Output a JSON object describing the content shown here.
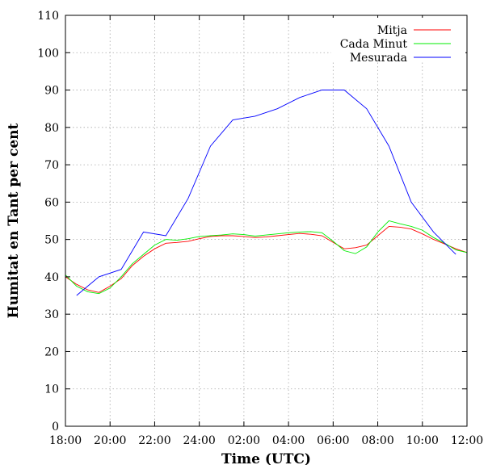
{
  "chart_data": {
    "type": "line",
    "title": "",
    "xlabel": "Time (UTC)",
    "ylabel": "Humitat en Tant per cent",
    "xlim": [
      18,
      36
    ],
    "ylim": [
      0,
      110
    ],
    "x_ticks": [
      {
        "value": 18,
        "label": "18:00"
      },
      {
        "value": 20,
        "label": "20:00"
      },
      {
        "value": 22,
        "label": "22:00"
      },
      {
        "value": 24,
        "label": "24:00"
      },
      {
        "value": 26,
        "label": "02:00"
      },
      {
        "value": 28,
        "label": "04:00"
      },
      {
        "value": 30,
        "label": "06:00"
      },
      {
        "value": 32,
        "label": "08:00"
      },
      {
        "value": 34,
        "label": "10:00"
      },
      {
        "value": 36,
        "label": "12:00"
      }
    ],
    "y_ticks": [
      0,
      10,
      20,
      30,
      40,
      50,
      60,
      70,
      80,
      90,
      100,
      110
    ],
    "grid": true,
    "legend_position": "top-right",
    "series": [
      {
        "name": "Mitja",
        "color": "#ff0000",
        "x": [
          18,
          18.5,
          19,
          19.5,
          20,
          20.5,
          21,
          21.5,
          22,
          22.5,
          23,
          23.5,
          24,
          24.5,
          25,
          25.5,
          26,
          26.5,
          27,
          27.5,
          28,
          28.5,
          29,
          29.5,
          30,
          30.5,
          31,
          31.5,
          32,
          32.5,
          33,
          33.5,
          34,
          34.5,
          35,
          35.5,
          36
        ],
        "values": [
          40,
          38,
          36.5,
          35.8,
          37.5,
          39.5,
          43,
          45.5,
          47.5,
          49,
          49.2,
          49.5,
          50.2,
          50.8,
          51,
          51,
          50.8,
          50.5,
          50.7,
          51,
          51.3,
          51.6,
          51.4,
          51,
          49.2,
          47.5,
          47.8,
          48.5,
          51,
          53.5,
          53.3,
          52.8,
          51.5,
          50,
          48.8,
          47.5,
          46.5
        ]
      },
      {
        "name": "Cada Minut",
        "color": "#00ee00",
        "x": [
          18,
          18.5,
          19,
          19.5,
          20,
          20.5,
          21,
          21.5,
          22,
          22.5,
          23,
          23.5,
          24,
          24.5,
          25,
          25.5,
          26,
          26.5,
          27,
          27.5,
          28,
          28.5,
          29,
          29.5,
          30,
          30.5,
          31,
          31.5,
          32,
          32.5,
          33,
          33.5,
          34,
          34.5,
          35,
          35.5,
          36
        ],
        "values": [
          40.5,
          37.5,
          36,
          35.5,
          37,
          40,
          43.5,
          46,
          48.5,
          50,
          49.8,
          50.2,
          50.8,
          51,
          51.2,
          51.5,
          51.3,
          50.9,
          51.2,
          51.5,
          51.8,
          52,
          52.1,
          51.8,
          49.5,
          47,
          46.2,
          48,
          52,
          55,
          54.2,
          53.5,
          52.5,
          50.5,
          49,
          47.2,
          46.5
        ]
      },
      {
        "name": "Mesurada",
        "color": "#0000ff",
        "x": [
          18.5,
          19.5,
          20.5,
          21.5,
          22.5,
          23.5,
          24.5,
          25.5,
          26.5,
          27.5,
          28.5,
          29.5,
          30.5,
          31.5,
          32.5,
          33.5,
          34.5,
          35.5
        ],
        "values": [
          35,
          40,
          42,
          52,
          51,
          61,
          75,
          82,
          83,
          85,
          88,
          90,
          90,
          85,
          75,
          60,
          52,
          46
        ]
      }
    ]
  }
}
